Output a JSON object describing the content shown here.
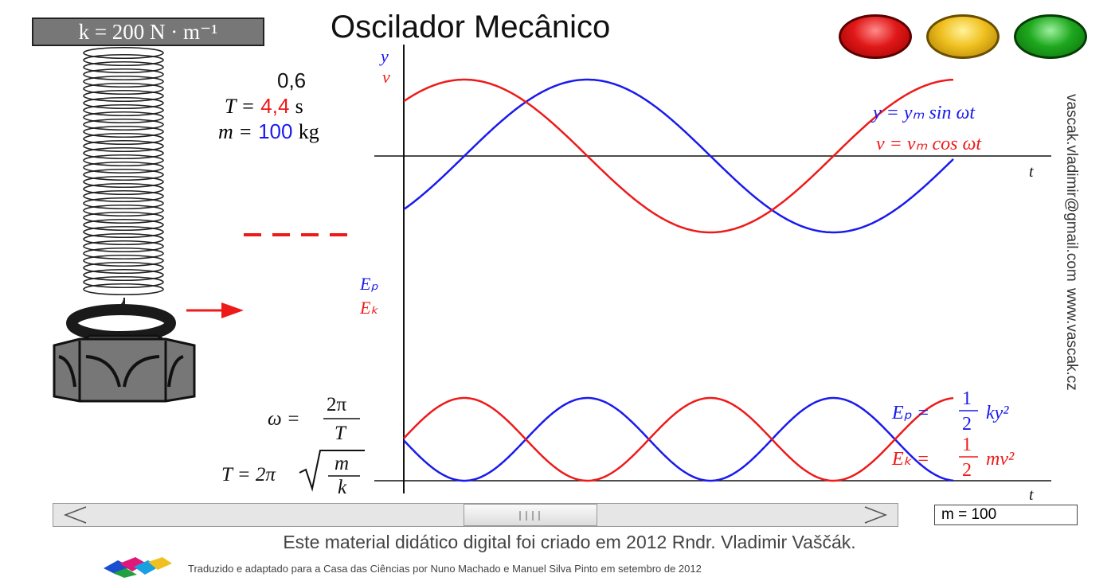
{
  "spring_label": "k = 200 N · m⁻¹",
  "title": "Oscilador Mecânico",
  "buttons": {
    "red": {
      "color": "#e01818"
    },
    "yellow": {
      "color": "#f0c020"
    },
    "green": {
      "color": "#1ea81e"
    }
  },
  "params": {
    "value_top": "0,6",
    "period_label": "T =",
    "period_value": "4,4",
    "period_unit": "s",
    "mass_label": "m =",
    "mass_value": "100",
    "mass_unit": "kg"
  },
  "graph_top": {
    "y_axis_label_1": "y",
    "y_axis_label_2": "v",
    "x_axis_label": "t",
    "eq_y": "y = yₘ sin ωt",
    "eq_v": "v = vₘ cos ωt"
  },
  "graph_bottom": {
    "y_axis_label_1": "Eₚ",
    "y_axis_label_2": "Eₖ",
    "x_axis_label": "t",
    "eq_ep_lhs": "Eₚ =",
    "eq_ek_lhs": "Eₖ =",
    "eq_frac_num": "1",
    "eq_frac_den": "2",
    "eq_ep_rhs": "ky²",
    "eq_ek_rhs": "mv²"
  },
  "formulas": {
    "omega_lhs": "ω =",
    "omega_num": "2π",
    "omega_den": "T",
    "period_lhs": "T = 2π",
    "period_num": "m",
    "period_den": "k"
  },
  "side_text_1": "vascak.vladimir@gmail.com",
  "side_text_2": "www.vascak.cz",
  "scrollbar": {
    "left_arrow": "<",
    "right_arrow": ">",
    "thumb_grip": "||||"
  },
  "mass_input_value": "m = 100",
  "credit_main": "Este material didático digital foi criado em 2012 Rndr. Vladimir Vaščák.",
  "credit_sub": "Traduzido e adaptado para a Casa das Ciências por Nuno Machado e Manuel Silva Pinto em setembro de 2012",
  "colors": {
    "y_series": "#1a1aee",
    "v_series": "#ee1a1a",
    "axis": "#111111"
  }
}
